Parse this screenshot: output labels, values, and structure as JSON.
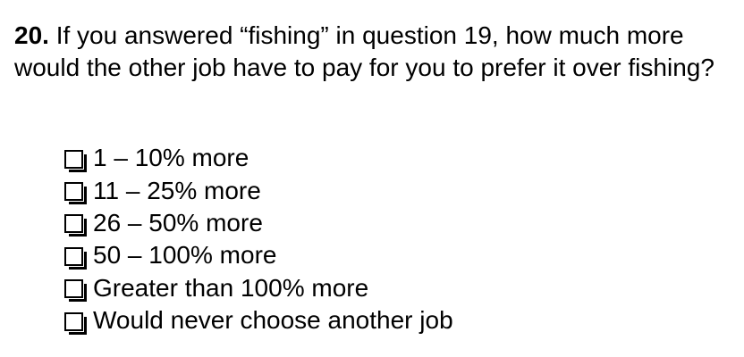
{
  "question": {
    "number": "20.",
    "text": " If you answered “fishing” in question 19, how much more would the other job have to pay for you to prefer it over fishing?"
  },
  "options": [
    {
      "label": "1 – 10% more",
      "checked": false
    },
    {
      "label": "11 – 25% more",
      "checked": false
    },
    {
      "label": "26 – 50% more",
      "checked": false
    },
    {
      "label": "50 – 100% more",
      "checked": false
    },
    {
      "label": "Greater than 100% more",
      "checked": false
    },
    {
      "label": "Would never choose another job",
      "checked": false
    }
  ]
}
